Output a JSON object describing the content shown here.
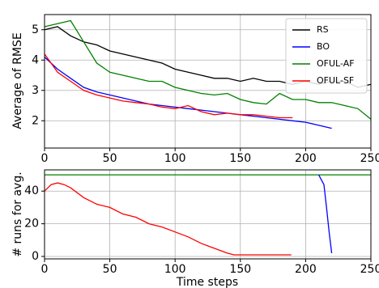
{
  "charts": [
    {
      "chart_data": {
        "type": "line",
        "ylabel": "Average of RMSE",
        "xlim": [
          0,
          250
        ],
        "xticks": [
          0,
          50,
          100,
          150,
          200,
          250
        ],
        "ylim": [
          1.1,
          5.5
        ],
        "yticks": [
          2,
          3,
          4,
          5
        ],
        "grid": true,
        "legend": "upper right",
        "series": [
          {
            "name": "RS",
            "color": "#000000",
            "x": [
              0,
              10,
              20,
              30,
              40,
              50,
              60,
              70,
              80,
              90,
              100,
              110,
              120,
              130,
              140,
              150,
              160,
              170,
              180,
              190,
              200,
              210,
              220,
              230,
              240,
              250
            ],
            "values": [
              5.0,
              5.1,
              4.8,
              4.6,
              4.5,
              4.3,
              4.2,
              4.1,
              4.0,
              3.9,
              3.7,
              3.6,
              3.5,
              3.4,
              3.4,
              3.3,
              3.4,
              3.3,
              3.3,
              3.2,
              3.3,
              3.2,
              3.3,
              3.3,
              3.1,
              3.2
            ]
          },
          {
            "name": "BO",
            "color": "#0000ff",
            "x": [
              0,
              10,
              20,
              30,
              40,
              50,
              60,
              70,
              80,
              90,
              100,
              110,
              120,
              130,
              140,
              150,
              160,
              170,
              180,
              190,
              200,
              210,
              220
            ],
            "values": [
              4.1,
              3.7,
              3.4,
              3.1,
              2.95,
              2.85,
              2.75,
              2.65,
              2.55,
              2.5,
              2.45,
              2.4,
              2.35,
              2.3,
              2.25,
              2.2,
              2.15,
              2.1,
              2.05,
              2.0,
              1.95,
              1.85,
              1.75
            ]
          },
          {
            "name": "OFUL-AF",
            "color": "#008000",
            "x": [
              0,
              10,
              20,
              30,
              40,
              50,
              60,
              70,
              80,
              90,
              100,
              110,
              120,
              130,
              140,
              150,
              160,
              170,
              180,
              190,
              200,
              210,
              220,
              230,
              240,
              250
            ],
            "values": [
              5.1,
              5.2,
              5.3,
              4.6,
              3.9,
              3.6,
              3.5,
              3.4,
              3.3,
              3.3,
              3.1,
              3.0,
              2.9,
              2.85,
              2.9,
              2.7,
              2.6,
              2.55,
              2.9,
              2.7,
              2.7,
              2.6,
              2.6,
              2.5,
              2.4,
              2.05
            ]
          },
          {
            "name": "OFUL-SF",
            "color": "#ff0000",
            "x": [
              0,
              10,
              20,
              30,
              40,
              50,
              60,
              70,
              80,
              90,
              100,
              110,
              120,
              130,
              140,
              150,
              160,
              170,
              180,
              190
            ],
            "values": [
              4.2,
              3.6,
              3.3,
              3.0,
              2.85,
              2.75,
              2.65,
              2.6,
              2.55,
              2.45,
              2.4,
              2.5,
              2.3,
              2.2,
              2.25,
              2.2,
              2.2,
              2.15,
              2.1,
              2.1
            ]
          }
        ]
      }
    },
    {
      "chart_data": {
        "type": "line",
        "ylabel": "# runs for avg.",
        "xlabel": "Time steps",
        "xlim": [
          0,
          250
        ],
        "xticks": [
          0,
          50,
          100,
          150,
          200,
          250
        ],
        "ylim": [
          -1.5,
          53
        ],
        "yticks": [
          0,
          20,
          40
        ],
        "grid": true,
        "series": [
          {
            "color": "#008000",
            "x": [
              0,
              250
            ],
            "values": [
              50,
              50
            ]
          },
          {
            "color": "#ff0000",
            "x": [
              0,
              5,
              10,
              15,
              20,
              30,
              40,
              50,
              60,
              70,
              80,
              90,
              100,
              110,
              120,
              130,
              140,
              145,
              150,
              189
            ],
            "values": [
              40,
              44,
              45,
              44,
              42,
              36,
              32,
              30,
              26,
              24,
              20,
              18,
              15,
              12,
              8,
              5,
              2,
              1,
              1,
              1
            ]
          },
          {
            "color": "#0000ff",
            "x": [
              210,
              214,
              216,
              218,
              220
            ],
            "values": [
              50,
              44,
              30,
              15,
              2
            ]
          }
        ]
      }
    }
  ]
}
